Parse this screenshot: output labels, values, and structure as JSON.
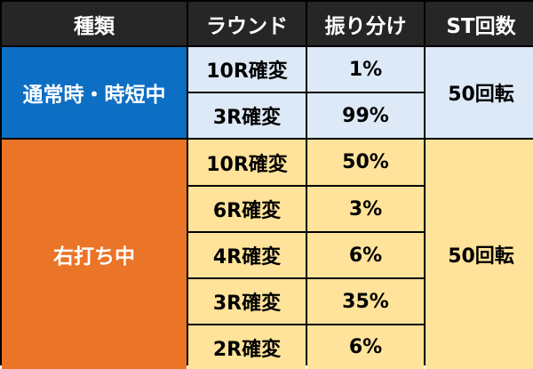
{
  "header": {
    "type_label": "種類",
    "round_label": "ラウンド",
    "ratio_label": "振り分け",
    "st_label": "ST回数"
  },
  "sections": [
    {
      "name": "通常時・時短中",
      "st": "50回転",
      "rows": [
        {
          "round": "10R確変",
          "ratio": "1%"
        },
        {
          "round": "3R確変",
          "ratio": "99%"
        }
      ]
    },
    {
      "name": "右打ち中",
      "st": "50回転",
      "rows": [
        {
          "round": "10R確変",
          "ratio": "50%"
        },
        {
          "round": "6R確変",
          "ratio": "3%"
        },
        {
          "round": "4R確変",
          "ratio": "6%"
        },
        {
          "round": "3R確変",
          "ratio": "35%"
        },
        {
          "round": "2R確変",
          "ratio": "6%"
        }
      ]
    }
  ],
  "colors": {
    "header_bg": "#262626",
    "normal_section": "#0d6fc4",
    "normal_cells": "#dde9f7",
    "right_section": "#ea7427",
    "right_cells": "#ffe39a"
  }
}
